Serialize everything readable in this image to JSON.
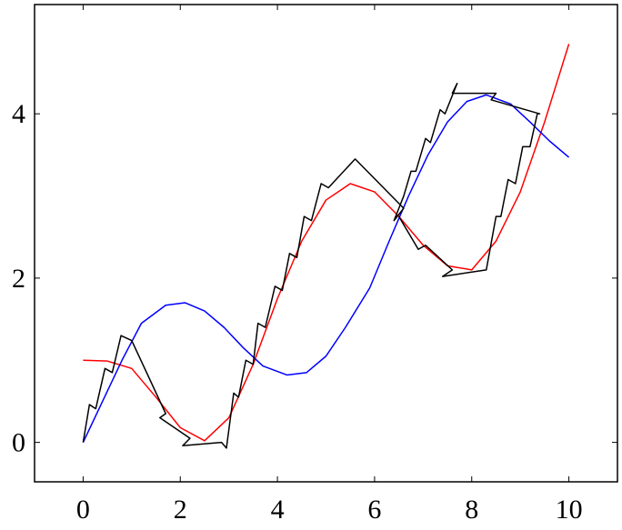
{
  "chart_data": {
    "type": "line",
    "xlim": [
      -1,
      11
    ],
    "ylim": [
      -0.48,
      5.33
    ],
    "xticks": [
      0,
      2,
      4,
      6,
      8,
      10
    ],
    "yticks": [
      0,
      2,
      4
    ],
    "series": [
      {
        "color": "#ff0000",
        "x": [
          0,
          0.5,
          1,
          1.5,
          2,
          2.5,
          3,
          3.5,
          4,
          4.5,
          5,
          5.5,
          6,
          6.5,
          7,
          7.5,
          8,
          8.5,
          9,
          9.5,
          10
        ],
        "values": [
          1.0,
          0.99,
          0.9,
          0.55,
          0.18,
          0.02,
          0.3,
          0.95,
          1.75,
          2.45,
          2.95,
          3.15,
          3.05,
          2.75,
          2.4,
          2.15,
          2.1,
          2.45,
          3.05,
          3.9,
          4.85
        ]
      },
      {
        "color": "#0000ff",
        "x": [
          0,
          0.4,
          0.8,
          1.2,
          1.7,
          2.1,
          2.5,
          2.9,
          3.3,
          3.7,
          4.2,
          4.6,
          5.0,
          5.4,
          5.9,
          6.3,
          6.7,
          7.1,
          7.5,
          7.9,
          8.3,
          8.8,
          9.2,
          9.6,
          10
        ],
        "values": [
          0,
          0.5,
          1.0,
          1.45,
          1.67,
          1.7,
          1.6,
          1.4,
          1.15,
          0.93,
          0.82,
          0.85,
          1.05,
          1.4,
          1.88,
          2.45,
          3.0,
          3.5,
          3.9,
          4.15,
          4.23,
          4.12,
          3.9,
          3.67,
          3.47
        ]
      },
      {
        "color": "#000000",
        "x": [
          0,
          0.13,
          0.26,
          0.45,
          0.6,
          0.78,
          1.0,
          1.7,
          1.58,
          2.2,
          2.05,
          2.85,
          2.95,
          3.1,
          3.2,
          3.35,
          3.5,
          3.6,
          3.75,
          3.95,
          4.1,
          4.25,
          4.4,
          4.55,
          4.7,
          4.9,
          5.05,
          5.6,
          6.6,
          6.4,
          6.5,
          6.6,
          6.75,
          6.85,
          7.05,
          7.15,
          7.35,
          7.45,
          7.7,
          7.6,
          8.5,
          8.4,
          9.4,
          9.35,
          9.2,
          9.05,
          8.9,
          8.75,
          8.6,
          8.5,
          8.3,
          7.4,
          7.6,
          7.05,
          6.9,
          6.5
        ],
        "values": [
          0,
          0.46,
          0.41,
          0.9,
          0.85,
          1.3,
          1.24,
          0.35,
          0.3,
          0.05,
          -0.04,
          0.0,
          -0.07,
          0.6,
          0.55,
          1.0,
          0.95,
          1.45,
          1.4,
          1.9,
          1.85,
          2.3,
          2.25,
          2.75,
          2.7,
          3.15,
          3.1,
          3.45,
          2.85,
          2.7,
          2.85,
          3.0,
          3.3,
          3.3,
          3.7,
          3.65,
          4.05,
          4.0,
          4.37,
          4.25,
          4.25,
          4.17,
          4.0,
          4.0,
          3.6,
          3.6,
          3.15,
          3.2,
          2.75,
          2.75,
          2.1,
          2.02,
          2.1,
          2.4,
          2.35,
          2.75
        ]
      }
    ]
  }
}
